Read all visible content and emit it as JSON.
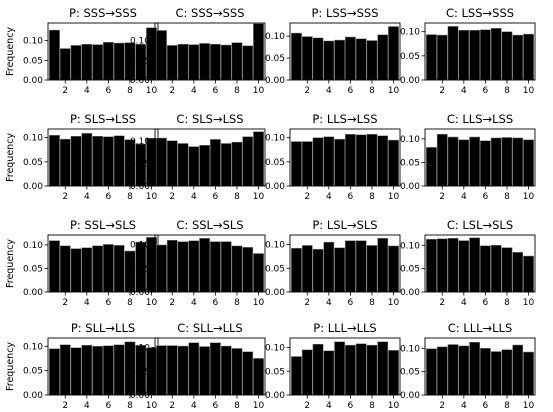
{
  "chart_data": [
    {
      "type": "bar",
      "title": "P: SSS→SSS",
      "ylabel": "Frequency",
      "x": [
        1,
        2,
        3,
        4,
        5,
        6,
        7,
        8,
        9,
        10
      ],
      "xticks": [
        2,
        4,
        6,
        8,
        10
      ],
      "yticks": [
        0.0,
        0.05,
        0.1
      ],
      "ytick_labels": [
        "0.00",
        "0.05",
        "0.10"
      ],
      "ylim": [
        0,
        0.145
      ],
      "values": [
        0.127,
        0.08,
        0.088,
        0.091,
        0.09,
        0.096,
        0.094,
        0.095,
        0.091,
        0.133
      ]
    },
    {
      "type": "bar",
      "title": "C: SSS→SSS",
      "ylabel": "",
      "x": [
        1,
        2,
        3,
        4,
        5,
        6,
        7,
        8,
        9,
        10
      ],
      "xticks": [
        2,
        4,
        6,
        8,
        10
      ],
      "yticks": [
        0.0,
        0.05,
        0.1
      ],
      "ytick_labels": [
        "0.00",
        "0.05",
        "0.10"
      ],
      "ylim": [
        0,
        0.145
      ],
      "values": [
        0.126,
        0.088,
        0.091,
        0.09,
        0.093,
        0.091,
        0.089,
        0.095,
        0.087,
        0.143
      ]
    },
    {
      "type": "bar",
      "title": "P: LSS→SSS",
      "ylabel": "",
      "x": [
        1,
        2,
        3,
        4,
        5,
        6,
        7,
        8,
        9,
        10
      ],
      "xticks": [
        2,
        4,
        6,
        8,
        10
      ],
      "yticks": [
        0.0,
        0.05,
        0.1
      ],
      "ytick_labels": [
        "0.00",
        "0.05",
        "0.10"
      ],
      "ylim": [
        0,
        0.13
      ],
      "values": [
        0.107,
        0.099,
        0.096,
        0.089,
        0.091,
        0.098,
        0.094,
        0.09,
        0.103,
        0.122
      ]
    },
    {
      "type": "bar",
      "title": "C: LSS→SSS",
      "ylabel": "",
      "x": [
        1,
        2,
        3,
        4,
        5,
        6,
        7,
        8,
        9,
        10
      ],
      "xticks": [
        2,
        4,
        6,
        8,
        10
      ],
      "yticks": [
        0.0,
        0.05,
        0.1
      ],
      "ytick_labels": [
        "0.00",
        "0.05",
        "0.10"
      ],
      "ylim": [
        0,
        0.118
      ],
      "values": [
        0.094,
        0.093,
        0.111,
        0.103,
        0.103,
        0.104,
        0.107,
        0.1,
        0.093,
        0.095
      ]
    },
    {
      "type": "bar",
      "title": "P: SLS→LSS",
      "ylabel": "Frequency",
      "x": [
        1,
        2,
        3,
        4,
        5,
        6,
        7,
        8,
        9,
        10
      ],
      "xticks": [
        2,
        4,
        6,
        8,
        10
      ],
      "yticks": [
        0.0,
        0.05,
        0.1
      ],
      "ytick_labels": [
        "0.00",
        "0.05",
        "0.10"
      ],
      "ylim": [
        0,
        0.118
      ],
      "values": [
        0.105,
        0.097,
        0.103,
        0.109,
        0.103,
        0.102,
        0.104,
        0.096,
        0.087,
        0.099
      ]
    },
    {
      "type": "bar",
      "title": "C: SLS→LSS",
      "ylabel": "",
      "x": [
        1,
        2,
        3,
        4,
        5,
        6,
        7,
        8,
        9,
        10
      ],
      "xticks": [
        2,
        4,
        6,
        8,
        10
      ],
      "yticks": [
        0.0,
        0.05,
        0.1
      ],
      "ytick_labels": [
        "0.00",
        "0.05",
        "0.10"
      ],
      "ylim": [
        0,
        0.126
      ],
      "values": [
        0.106,
        0.1,
        0.094,
        0.087,
        0.09,
        0.103,
        0.094,
        0.097,
        0.109,
        0.12
      ]
    },
    {
      "type": "bar",
      "title": "P: LLS→LSS",
      "ylabel": "",
      "x": [
        1,
        2,
        3,
        4,
        5,
        6,
        7,
        8,
        9,
        10
      ],
      "xticks": [
        2,
        4,
        6,
        8,
        10
      ],
      "yticks": [
        0.0,
        0.05,
        0.1
      ],
      "ytick_labels": [
        "0.00",
        "0.05",
        "0.10"
      ],
      "ylim": [
        0,
        0.118
      ],
      "values": [
        0.092,
        0.092,
        0.1,
        0.102,
        0.097,
        0.107,
        0.106,
        0.107,
        0.104,
        0.095
      ]
    },
    {
      "type": "bar",
      "title": "C: LLS→LSS",
      "ylabel": "",
      "x": [
        1,
        2,
        3,
        4,
        5,
        6,
        7,
        8,
        9,
        10
      ],
      "xticks": [
        2,
        4,
        6,
        8,
        10
      ],
      "yticks": [
        0.0,
        0.05,
        0.1
      ],
      "ytick_labels": [
        "0.00",
        "0.05",
        "0.10"
      ],
      "ylim": [
        0,
        0.121
      ],
      "values": [
        0.082,
        0.11,
        0.104,
        0.098,
        0.104,
        0.096,
        0.102,
        0.103,
        0.102,
        0.098
      ]
    },
    {
      "type": "bar",
      "title": "P: SSL→SLS",
      "ylabel": "Frequency",
      "x": [
        1,
        2,
        3,
        4,
        5,
        6,
        7,
        8,
        9,
        10
      ],
      "xticks": [
        2,
        4,
        6,
        8,
        10
      ],
      "yticks": [
        0.0,
        0.05,
        0.1
      ],
      "ytick_labels": [
        "0.00",
        "0.05",
        "0.10"
      ],
      "ylim": [
        0,
        0.121
      ],
      "values": [
        0.109,
        0.098,
        0.092,
        0.094,
        0.098,
        0.101,
        0.099,
        0.087,
        0.106,
        0.116
      ]
    },
    {
      "type": "bar",
      "title": "C: SSL→SLS",
      "ylabel": "",
      "x": [
        1,
        2,
        3,
        4,
        5,
        6,
        7,
        8,
        9,
        10
      ],
      "xticks": [
        2,
        4,
        6,
        8,
        10
      ],
      "yticks": [
        0.0,
        0.05,
        0.1
      ],
      "ytick_labels": [
        "0.00",
        "0.05",
        "0.10"
      ],
      "ylim": [
        0,
        0.12
      ],
      "values": [
        0.099,
        0.109,
        0.106,
        0.108,
        0.113,
        0.106,
        0.106,
        0.097,
        0.094,
        0.081
      ]
    },
    {
      "type": "bar",
      "title": "P: LSL→SLS",
      "ylabel": "",
      "x": [
        1,
        2,
        3,
        4,
        5,
        6,
        7,
        8,
        9,
        10
      ],
      "xticks": [
        2,
        4,
        6,
        8,
        10
      ],
      "yticks": [
        0.0,
        0.05,
        0.1
      ],
      "ytick_labels": [
        "0.00",
        "0.05",
        "0.10"
      ],
      "ylim": [
        0,
        0.12
      ],
      "values": [
        0.092,
        0.098,
        0.09,
        0.105,
        0.093,
        0.108,
        0.108,
        0.098,
        0.113,
        0.097
      ]
    },
    {
      "type": "bar",
      "title": "C: LSL→SLS",
      "ylabel": "",
      "x": [
        1,
        2,
        3,
        4,
        5,
        6,
        7,
        8,
        9,
        10
      ],
      "xticks": [
        2,
        4,
        6,
        8,
        10
      ],
      "yticks": [
        0.0,
        0.05,
        0.1
      ],
      "ytick_labels": [
        "0.00",
        "0.05",
        "0.10"
      ],
      "ylim": [
        0,
        0.122
      ],
      "values": [
        0.113,
        0.114,
        0.115,
        0.11,
        0.116,
        0.099,
        0.1,
        0.095,
        0.085,
        0.077
      ]
    },
    {
      "type": "bar",
      "title": "P: SLL→LLS",
      "ylabel": "Frequency",
      "x": [
        1,
        2,
        3,
        4,
        5,
        6,
        7,
        8,
        9,
        10
      ],
      "xticks": [
        2,
        4,
        6,
        8,
        10
      ],
      "yticks": [
        0.0,
        0.05,
        0.1
      ],
      "ytick_labels": [
        "0.00",
        "0.05",
        "0.10"
      ],
      "ylim": [
        0,
        0.117
      ],
      "values": [
        0.095,
        0.103,
        0.097,
        0.102,
        0.1,
        0.101,
        0.103,
        0.109,
        0.102,
        0.097
      ]
    },
    {
      "type": "bar",
      "title": "C: SLL→LLS",
      "ylabel": "",
      "x": [
        1,
        2,
        3,
        4,
        5,
        6,
        7,
        8,
        9,
        10
      ],
      "xticks": [
        2,
        4,
        6,
        8,
        10
      ],
      "yticks": [
        0.0,
        0.05,
        0.1
      ],
      "ytick_labels": [
        "0.00",
        "0.05",
        "0.10"
      ],
      "ylim": [
        0,
        0.12
      ],
      "values": [
        0.104,
        0.104,
        0.103,
        0.11,
        0.102,
        0.11,
        0.103,
        0.098,
        0.091,
        0.077
      ]
    },
    {
      "type": "bar",
      "title": "P: LLL→LLS",
      "ylabel": "",
      "x": [
        1,
        2,
        3,
        4,
        5,
        6,
        7,
        8,
        9,
        10
      ],
      "xticks": [
        2,
        4,
        6,
        8,
        10
      ],
      "yticks": [
        0.0,
        0.05,
        0.1
      ],
      "ytick_labels": [
        "0.00",
        "0.05",
        "0.10"
      ],
      "ylim": [
        0,
        0.12
      ],
      "values": [
        0.081,
        0.095,
        0.107,
        0.093,
        0.112,
        0.105,
        0.108,
        0.105,
        0.112,
        0.094
      ]
    },
    {
      "type": "bar",
      "title": "C: LLL→LLS",
      "ylabel": "",
      "x": [
        1,
        2,
        3,
        4,
        5,
        6,
        7,
        8,
        9,
        10
      ],
      "xticks": [
        2,
        4,
        6,
        8,
        10
      ],
      "yticks": [
        0.0,
        0.05,
        0.1
      ],
      "ytick_labels": [
        "0.00",
        "0.05",
        "0.10"
      ],
      "ylim": [
        0,
        0.122
      ],
      "values": [
        0.099,
        0.103,
        0.108,
        0.105,
        0.113,
        0.1,
        0.093,
        0.097,
        0.107,
        0.092
      ]
    }
  ]
}
